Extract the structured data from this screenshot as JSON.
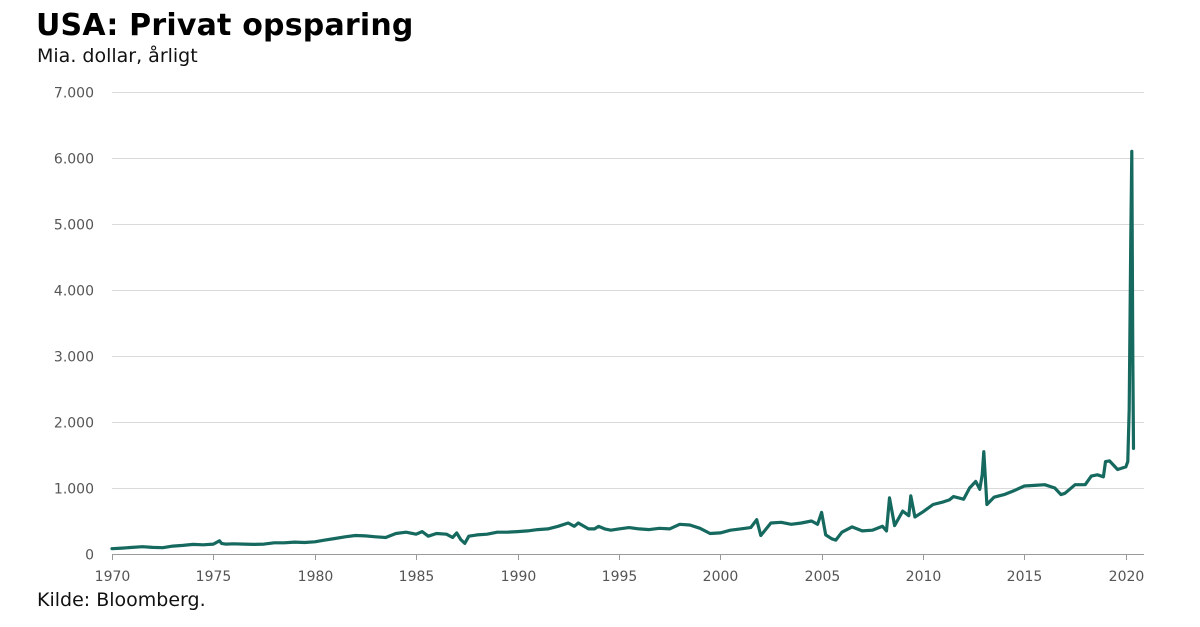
{
  "header": {
    "title": "USA: Privat opsparing",
    "subtitle": "Mia. dollar, årligt"
  },
  "footer": {
    "source": "Kilde: Bloomberg."
  },
  "colors": {
    "series": "#15695f",
    "grid": "#dadada",
    "tick_text": "#555555"
  },
  "chart_data": {
    "type": "line",
    "title": "USA: Privat opsparing",
    "subtitle": "Mia. dollar, årligt",
    "xlabel": "",
    "ylabel": "Mia. dollar, årligt",
    "xlim": [
      1970,
      2020.9
    ],
    "ylim": [
      0,
      7000
    ],
    "grid": true,
    "legend": "none",
    "x_ticks": [
      1970,
      1975,
      1980,
      1985,
      1990,
      1995,
      2000,
      2005,
      2010,
      2015,
      2020
    ],
    "x_tick_labels": [
      "1970",
      "1975",
      "1980",
      "1985",
      "1990",
      "1995",
      "2000",
      "2005",
      "2010",
      "2015",
      "2020"
    ],
    "y_ticks": [
      0,
      1000,
      2000,
      3000,
      4000,
      5000,
      6000,
      7000
    ],
    "y_tick_labels": [
      "0",
      "1.000",
      "2.000",
      "3.000",
      "4.000",
      "5.000",
      "6.000",
      "7.000"
    ],
    "series": [
      {
        "name": "Privat opsparing",
        "x": [
          1970.0,
          1970.5,
          1971.0,
          1971.5,
          1972.0,
          1972.5,
          1973.0,
          1973.5,
          1974.0,
          1974.5,
          1975.0,
          1975.3,
          1975.4,
          1975.6,
          1976.0,
          1976.5,
          1977.0,
          1977.5,
          1978.0,
          1978.5,
          1979.0,
          1979.5,
          1980.0,
          1980.5,
          1981.0,
          1981.5,
          1982.0,
          1982.5,
          1983.0,
          1983.5,
          1984.0,
          1984.5,
          1985.0,
          1985.3,
          1985.6,
          1986.0,
          1986.5,
          1986.8,
          1987.0,
          1987.2,
          1987.4,
          1987.6,
          1988.0,
          1988.5,
          1989.0,
          1989.5,
          1990.0,
          1990.5,
          1991.0,
          1991.5,
          1992.0,
          1992.5,
          1992.8,
          1993.0,
          1993.5,
          1993.8,
          1994.0,
          1994.3,
          1994.6,
          1995.0,
          1995.5,
          1996.0,
          1996.5,
          1997.0,
          1997.5,
          1998.0,
          1998.5,
          1999.0,
          1999.5,
          2000.0,
          2000.5,
          2001.0,
          2001.5,
          2001.8,
          2002.0,
          2002.5,
          2003.0,
          2003.5,
          2004.0,
          2004.5,
          2004.8,
          2005.0,
          2005.2,
          2005.5,
          2005.7,
          2006.0,
          2006.5,
          2007.0,
          2007.5,
          2008.0,
          2008.2,
          2008.35,
          2008.6,
          2009.0,
          2009.3,
          2009.4,
          2009.6,
          2010.0,
          2010.5,
          2011.0,
          2011.3,
          2011.5,
          2012.0,
          2012.3,
          2012.6,
          2012.8,
          2012.92,
          2013.0,
          2013.15,
          2013.5,
          2014.0,
          2014.5,
          2015.0,
          2015.5,
          2016.0,
          2016.5,
          2016.8,
          2017.0,
          2017.5,
          2018.0,
          2018.3,
          2018.6,
          2018.9,
          2019.0,
          2019.2,
          2019.6,
          2020.0,
          2020.1,
          2020.17,
          2020.25,
          2020.3,
          2020.35,
          2020.38
        ],
        "values": [
          80,
          90,
          100,
          110,
          100,
          95,
          120,
          130,
          145,
          140,
          150,
          200,
          160,
          150,
          155,
          150,
          145,
          150,
          170,
          170,
          180,
          175,
          185,
          210,
          235,
          260,
          280,
          275,
          260,
          250,
          310,
          330,
          300,
          340,
          270,
          310,
          300,
          250,
          320,
          220,
          160,
          270,
          290,
          300,
          330,
          330,
          340,
          350,
          370,
          380,
          420,
          470,
          420,
          470,
          380,
          380,
          420,
          380,
          360,
          380,
          400,
          380,
          370,
          390,
          380,
          450,
          440,
          390,
          310,
          320,
          360,
          380,
          400,
          520,
          280,
          470,
          480,
          450,
          470,
          500,
          450,
          630,
          290,
          230,
          210,
          330,
          410,
          350,
          360,
          420,
          350,
          850,
          430,
          650,
          580,
          880,
          560,
          640,
          750,
          790,
          820,
          870,
          830,
          1000,
          1100,
          980,
          1200,
          1550,
          750,
          860,
          900,
          960,
          1030,
          1040,
          1050,
          1000,
          900,
          920,
          1050,
          1050,
          1180,
          1200,
          1170,
          1400,
          1410,
          1280,
          1320,
          1400,
          2200,
          4800,
          6100,
          3000,
          1600
        ]
      }
    ]
  }
}
